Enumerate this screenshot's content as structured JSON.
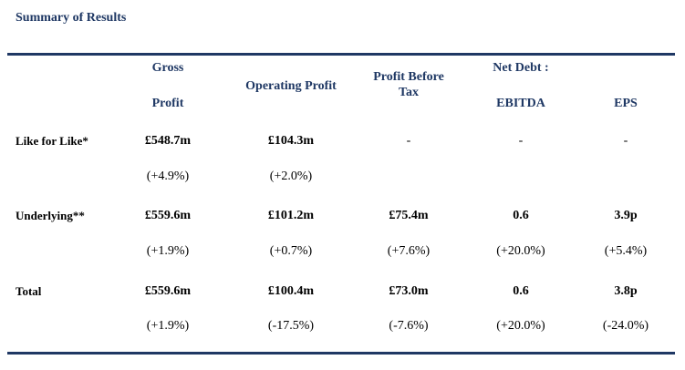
{
  "title": "Summary of Results",
  "headers": {
    "gross_profit_line1": "Gross",
    "gross_profit_line2": "Profit",
    "operating_profit": "Operating Profit",
    "profit_before_tax_line1": "Profit Before",
    "profit_before_tax_line2": "Tax",
    "net_debt_line1": "Net Debt :",
    "net_debt_line2": "EBITDA",
    "eps": "EPS"
  },
  "rows": [
    {
      "label": "Like for Like*",
      "values": [
        "£548.7m",
        "£104.3m",
        "-",
        "-",
        "-"
      ],
      "changes": [
        "(+4.9%)",
        "(+2.0%)",
        "",
        "",
        ""
      ]
    },
    {
      "label": "Underlying**",
      "values": [
        "£559.6m",
        "£101.2m",
        "£75.4m",
        "0.6",
        "3.9p"
      ],
      "changes": [
        "(+1.9%)",
        "(+0.7%)",
        "(+7.6%)",
        "(+20.0%)",
        "(+5.4%)"
      ]
    },
    {
      "label": "Total",
      "values": [
        "£559.6m",
        "£100.4m",
        "£73.0m",
        "0.6",
        "3.8p"
      ],
      "changes": [
        "(+1.9%)",
        "(-17.5%)",
        "(-7.6%)",
        "(+20.0%)",
        "(-24.0%)"
      ]
    }
  ]
}
